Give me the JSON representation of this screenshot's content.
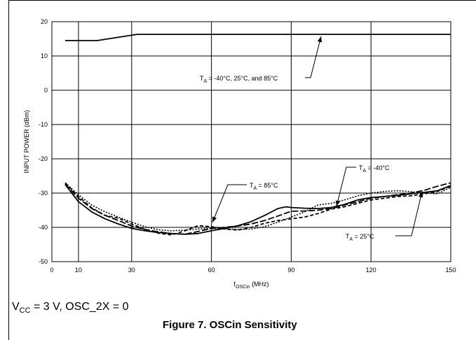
{
  "chart_data": {
    "type": "line",
    "xlabel_main": "f",
    "xlabel_sub": "OSCin",
    "xlabel_unit": " (MHz)",
    "ylabel": "INPUT POWER (dBm)",
    "xlim": [
      0,
      150
    ],
    "ylim": [
      -50,
      20
    ],
    "x_ticks": [
      0,
      10,
      30,
      60,
      90,
      120,
      150
    ],
    "y_ticks": [
      20,
      10,
      0,
      -10,
      -20,
      -30,
      -40,
      -50
    ],
    "grid": true,
    "series": [
      {
        "key": "upper",
        "style": "solid",
        "x": [
          5,
          17,
          32,
          150
        ],
        "y": [
          14.5,
          14.5,
          16.3,
          16.3
        ]
      },
      {
        "key": "t85",
        "style": "solid",
        "x": [
          5,
          10,
          15,
          20,
          25,
          30,
          35,
          40,
          45,
          50,
          55,
          60,
          65,
          70,
          75,
          80,
          85,
          88,
          90,
          95,
          100,
          105,
          110,
          115,
          120,
          125,
          130,
          135,
          140,
          145,
          150
        ],
        "y": [
          -27.5,
          -32.5,
          -35.5,
          -37.5,
          -39,
          -40.3,
          -41,
          -41.5,
          -41.8,
          -42,
          -41.8,
          -41,
          -40.3,
          -39.5,
          -38.3,
          -36.5,
          -34.5,
          -34,
          -34.2,
          -34.4,
          -34.5,
          -34.2,
          -33.3,
          -32,
          -31.3,
          -31,
          -30.7,
          -30.2,
          -29.8,
          -29.3,
          -27.8
        ]
      },
      {
        "key": "tm40",
        "style": "longdash",
        "x": [
          5,
          10,
          15,
          20,
          25,
          30,
          35,
          40,
          45,
          50,
          55,
          60,
          65,
          70,
          75,
          80,
          85,
          90,
          95,
          100,
          105,
          110,
          115,
          120,
          125,
          130,
          135,
          140,
          145,
          150
        ],
        "y": [
          -27.3,
          -31.5,
          -34.5,
          -36.5,
          -38,
          -39.6,
          -40.6,
          -41.3,
          -41.8,
          -42,
          -41.2,
          -40.3,
          -40,
          -39.6,
          -39,
          -38,
          -36.7,
          -35.3,
          -35.2,
          -35,
          -34.5,
          -33.5,
          -32.5,
          -31.5,
          -31,
          -30.5,
          -30,
          -29.2,
          -28,
          -27
        ]
      },
      {
        "key": "t25",
        "style": "dash",
        "x": [
          5,
          10,
          15,
          20,
          25,
          30,
          35,
          40,
          45,
          50,
          55,
          60,
          65,
          70,
          75,
          80,
          85,
          90,
          95,
          100,
          105,
          110,
          115,
          120,
          125,
          130,
          135,
          140,
          145,
          150
        ],
        "y": [
          -27,
          -31,
          -34.3,
          -36.5,
          -37.3,
          -39,
          -40.6,
          -41.7,
          -42.2,
          -41,
          -39.5,
          -39.8,
          -40.5,
          -40.8,
          -40,
          -38.8,
          -38,
          -37.5,
          -37,
          -36,
          -34.7,
          -34,
          -33,
          -32,
          -31.5,
          -31,
          -30.8,
          -30.2,
          -29.5,
          -28
        ]
      },
      {
        "key": "dotted",
        "style": "dot",
        "x": [
          5,
          10,
          15,
          20,
          25,
          30,
          35,
          40,
          45,
          50,
          55,
          60,
          65,
          70,
          75,
          80,
          85,
          90,
          95,
          100,
          105,
          110,
          115,
          120,
          125,
          130,
          135,
          140,
          145,
          150
        ],
        "y": [
          -27,
          -30.5,
          -33.5,
          -35.5,
          -37,
          -38.5,
          -39.8,
          -40.7,
          -41,
          -40.8,
          -40.5,
          -40.3,
          -40.4,
          -40.6,
          -40.5,
          -39.8,
          -38.5,
          -37,
          -35.5,
          -33.5,
          -33,
          -32,
          -30.8,
          -30,
          -29.5,
          -29.3,
          -29.6,
          -30,
          -30.2,
          -28.3
        ]
      }
    ],
    "annotations": [
      {
        "key": "all",
        "main": "T",
        "sub": "A",
        "rest": " = -40°C, 25°C, and 85°C"
      },
      {
        "key": "a85",
        "main": "T",
        "sub": "A",
        "rest": " = 85°C"
      },
      {
        "key": "am40",
        "main": "T",
        "sub": "A",
        "rest": " = -40°C"
      },
      {
        "key": "a25",
        "main": "T",
        "sub": "A",
        "rest": " = 25°C"
      }
    ]
  },
  "conditions": {
    "v": "V",
    "v_sub": "CC",
    "rest": " = 3 V, OSC_2X = 0"
  },
  "figure_caption": "Figure 7. OSCin Sensitivity"
}
